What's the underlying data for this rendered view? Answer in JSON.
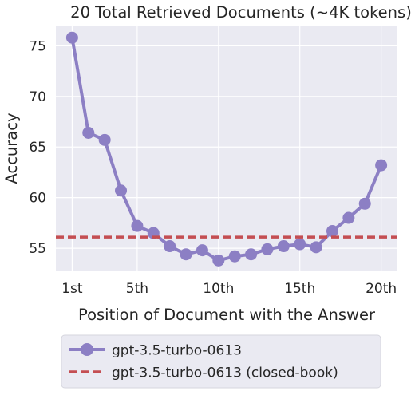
{
  "chart_data": {
    "type": "line",
    "title": "20 Total Retrieved Documents (~4K tokens)",
    "xlabel": "Position of Document with the Answer",
    "ylabel": "Accuracy",
    "x_ticks": [
      1,
      5,
      10,
      15,
      20
    ],
    "x_tick_labels": [
      "1st",
      "5th",
      "10th",
      "15th",
      "20th"
    ],
    "y_ticks": [
      55,
      60,
      65,
      70,
      75
    ],
    "y_tick_labels": [
      "55",
      "60",
      "65",
      "70",
      "75"
    ],
    "xlim": [
      0.0,
      21.0
    ],
    "ylim": [
      52.8,
      77.0
    ],
    "grid": true,
    "legend_position": "bottom-left (below plot)",
    "series": [
      {
        "name": "gpt-3.5-turbo-0613",
        "style": "line-marker",
        "color": "#8c7fc4",
        "x": [
          1,
          2,
          3,
          4,
          5,
          6,
          7,
          8,
          9,
          10,
          11,
          12,
          13,
          14,
          15,
          16,
          17,
          18,
          19,
          20
        ],
        "values": [
          75.8,
          66.4,
          65.7,
          60.7,
          57.2,
          56.5,
          55.2,
          54.4,
          54.8,
          53.8,
          54.2,
          54.4,
          54.9,
          55.2,
          55.4,
          55.1,
          56.7,
          58.0,
          59.4,
          63.2
        ]
      },
      {
        "name": "gpt-3.5-turbo-0613 (closed-book)",
        "style": "dashed-hline",
        "color": "#c44e52",
        "value": 56.1
      }
    ]
  }
}
